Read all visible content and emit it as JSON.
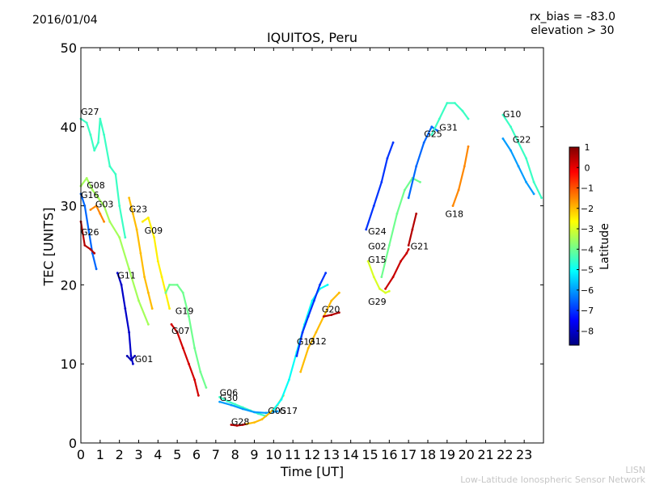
{
  "header": {
    "date": "2016/01/04",
    "rx_bias": "rx_bias = -83.0",
    "elevation": "elevation > 30"
  },
  "credit": {
    "line1": "LISN",
    "line2": "Low-Latitude Ionospheric Sensor Network"
  },
  "chart_data": {
    "type": "scatter",
    "title": "IQUITOS, Peru",
    "xlabel": "Time [UT]",
    "ylabel": "TEC [UNITS]",
    "xlim": [
      0,
      24
    ],
    "ylim": [
      0,
      50
    ],
    "x_ticks": [
      0,
      1,
      2,
      3,
      4,
      5,
      6,
      7,
      8,
      9,
      10,
      11,
      12,
      13,
      14,
      15,
      16,
      17,
      18,
      19,
      20,
      21,
      22,
      23
    ],
    "y_ticks": [
      0,
      10,
      20,
      30,
      40,
      50
    ],
    "colorbar": {
      "label": "Latitude",
      "range": [
        -8.7,
        1.0
      ],
      "ticks": [
        1,
        0,
        -1,
        -2,
        -3,
        -4,
        -5,
        -6,
        -7,
        -8
      ],
      "colormap": [
        "#00007f",
        "#0000ff",
        "#007fff",
        "#00ffff",
        "#7fff7f",
        "#ffff00",
        "#ff7f00",
        "#ff0000",
        "#7f0000"
      ]
    },
    "series": [
      {
        "name": "G27",
        "lat": -4.5,
        "points": [
          [
            0,
            41
          ],
          [
            0.3,
            40.5
          ],
          [
            0.5,
            39
          ],
          [
            0.7,
            37
          ],
          [
            0.9,
            38
          ],
          [
            1.0,
            41
          ],
          [
            1.2,
            39
          ],
          [
            1.5,
            35
          ],
          [
            1.8,
            34
          ],
          [
            2.0,
            30
          ],
          [
            2.3,
            26
          ]
        ]
      },
      {
        "name": "G08",
        "lat": -3.5,
        "points": [
          [
            0,
            32.5
          ],
          [
            0.3,
            33.5
          ],
          [
            0.6,
            32
          ],
          [
            0.9,
            31
          ],
          [
            1.2,
            30
          ],
          [
            1.5,
            28
          ],
          [
            2.0,
            26
          ],
          [
            2.5,
            22
          ],
          [
            3.0,
            18
          ],
          [
            3.5,
            15
          ]
        ]
      },
      {
        "name": "G16",
        "lat": -6.5,
        "points": [
          [
            0,
            31.5
          ],
          [
            0.2,
            30
          ],
          [
            0.4,
            27
          ],
          [
            0.6,
            24
          ],
          [
            0.8,
            22
          ]
        ]
      },
      {
        "name": "G03",
        "lat": -1.5,
        "points": [
          [
            0.5,
            29.5
          ],
          [
            0.8,
            30
          ],
          [
            1.0,
            29
          ],
          [
            1.2,
            28
          ]
        ]
      },
      {
        "name": "G26",
        "lat": 0.5,
        "points": [
          [
            0,
            28
          ],
          [
            0.2,
            25
          ],
          [
            0.5,
            24.5
          ],
          [
            0.7,
            24
          ]
        ]
      },
      {
        "name": "G11",
        "lat": -8.0,
        "points": [
          [
            1.9,
            21.5
          ],
          [
            2.1,
            20
          ],
          [
            2.3,
            17
          ],
          [
            2.5,
            14
          ],
          [
            2.6,
            11
          ],
          [
            2.7,
            10
          ]
        ]
      },
      {
        "name": "G01",
        "lat": -8.2,
        "points": [
          [
            2.4,
            11
          ],
          [
            2.6,
            10.5
          ],
          [
            2.8,
            11
          ]
        ]
      },
      {
        "name": "G23",
        "lat": -2.0,
        "points": [
          [
            2.5,
            31
          ],
          [
            2.7,
            29
          ],
          [
            2.9,
            27
          ],
          [
            3.1,
            24
          ],
          [
            3.3,
            21
          ],
          [
            3.5,
            19
          ],
          [
            3.7,
            17
          ]
        ]
      },
      {
        "name": "G09",
        "lat": -2.5,
        "points": [
          [
            3.2,
            28
          ],
          [
            3.5,
            28.5
          ],
          [
            3.8,
            26
          ],
          [
            4.0,
            23
          ],
          [
            4.2,
            21
          ],
          [
            4.4,
            19
          ],
          [
            4.6,
            17
          ]
        ]
      },
      {
        "name": "G19",
        "lat": -4.0,
        "points": [
          [
            4.4,
            19
          ],
          [
            4.6,
            20
          ],
          [
            5.0,
            20
          ],
          [
            5.3,
            19
          ],
          [
            5.6,
            16
          ],
          [
            5.9,
            12
          ],
          [
            6.2,
            9
          ],
          [
            6.5,
            7
          ]
        ]
      },
      {
        "name": "G07",
        "lat": 0.2,
        "points": [
          [
            4.7,
            15
          ],
          [
            5.0,
            14
          ],
          [
            5.3,
            12
          ],
          [
            5.6,
            10
          ],
          [
            5.9,
            8
          ],
          [
            6.1,
            6
          ]
        ]
      },
      {
        "name": "G06",
        "lat": -4.5,
        "points": [
          [
            7.2,
            5.8
          ],
          [
            7.6,
            5.3
          ],
          [
            8.0,
            4.9
          ],
          [
            8.4,
            4.5
          ],
          [
            8.8,
            4.1
          ],
          [
            9.2,
            3.7
          ],
          [
            9.6,
            3.4
          ]
        ]
      },
      {
        "name": "G30",
        "lat": -6.0,
        "points": [
          [
            7.2,
            5.2
          ],
          [
            7.8,
            4.8
          ],
          [
            8.4,
            4.3
          ],
          [
            9.0,
            3.9
          ],
          [
            9.6,
            3.8
          ],
          [
            10.2,
            4.0
          ]
        ]
      },
      {
        "name": "G28",
        "lat": 0.5,
        "points": [
          [
            7.8,
            2.3
          ],
          [
            8.1,
            2.2
          ],
          [
            8.4,
            2.3
          ],
          [
            8.6,
            2.4
          ]
        ]
      },
      {
        "name": "G05",
        "lat": -2.0,
        "points": [
          [
            8.6,
            2.4
          ],
          [
            9.0,
            2.6
          ],
          [
            9.4,
            3.0
          ],
          [
            9.8,
            3.8
          ],
          [
            10.2,
            4.8
          ],
          [
            10.5,
            6
          ]
        ]
      },
      {
        "name": "G17",
        "lat": -5.0,
        "points": [
          [
            10.0,
            4.2
          ],
          [
            10.4,
            5.5
          ],
          [
            10.8,
            8
          ],
          [
            11.2,
            11.5
          ],
          [
            11.6,
            15
          ],
          [
            12.0,
            18
          ],
          [
            12.4,
            19.5
          ],
          [
            12.8,
            20
          ]
        ]
      },
      {
        "name": "G13",
        "lat": -7.0,
        "points": [
          [
            11.2,
            11
          ],
          [
            11.5,
            14
          ],
          [
            11.8,
            16
          ],
          [
            12.1,
            18
          ],
          [
            12.4,
            20
          ],
          [
            12.7,
            21.5
          ]
        ]
      },
      {
        "name": "G12",
        "lat": -2.0,
        "points": [
          [
            11.4,
            9
          ],
          [
            11.8,
            12
          ],
          [
            12.2,
            14
          ],
          [
            12.6,
            16
          ],
          [
            13.0,
            18
          ],
          [
            13.4,
            19
          ]
        ]
      },
      {
        "name": "G20",
        "lat": 0.5,
        "points": [
          [
            12.6,
            16
          ],
          [
            13.0,
            16.2
          ],
          [
            13.4,
            16.5
          ]
        ]
      },
      {
        "name": "G24",
        "lat": -7.0,
        "points": [
          [
            14.8,
            27
          ],
          [
            15.2,
            30
          ],
          [
            15.6,
            33
          ],
          [
            15.9,
            36
          ],
          [
            16.2,
            38
          ]
        ]
      },
      {
        "name": "G02",
        "lat": -4.0,
        "points": [
          [
            15.6,
            21
          ],
          [
            16.0,
            25
          ],
          [
            16.4,
            29
          ],
          [
            16.8,
            32
          ],
          [
            17.2,
            33.5
          ],
          [
            17.6,
            33
          ]
        ]
      },
      {
        "name": "G15",
        "lat": -3.0,
        "points": [
          [
            14.9,
            23
          ],
          [
            15.2,
            21
          ],
          [
            15.5,
            19.5
          ],
          [
            15.8,
            19
          ],
          [
            16.0,
            19.2
          ]
        ]
      },
      {
        "name": "G29",
        "lat": 0.3,
        "points": [
          [
            15.8,
            19.5
          ],
          [
            16.2,
            21
          ],
          [
            16.6,
            23
          ],
          [
            16.9,
            24
          ],
          [
            17.0,
            24.5
          ]
        ]
      },
      {
        "name": "G21",
        "lat": 0.5,
        "points": [
          [
            17.0,
            25
          ],
          [
            17.2,
            27
          ],
          [
            17.4,
            29
          ]
        ]
      },
      {
        "name": "G25",
        "lat": -6.5,
        "points": [
          [
            17.0,
            31
          ],
          [
            17.4,
            35
          ],
          [
            17.8,
            38
          ],
          [
            18.2,
            40
          ],
          [
            18.5,
            39.5
          ]
        ]
      },
      {
        "name": "G31",
        "lat": -4.5,
        "points": [
          [
            18.2,
            39
          ],
          [
            18.6,
            41
          ],
          [
            19.0,
            43
          ],
          [
            19.4,
            43
          ],
          [
            19.8,
            42
          ],
          [
            20.1,
            41
          ]
        ]
      },
      {
        "name": "G18",
        "lat": -1.5,
        "points": [
          [
            19.3,
            30
          ],
          [
            19.6,
            32
          ],
          [
            19.9,
            35
          ],
          [
            20.1,
            37.5
          ]
        ]
      },
      {
        "name": "G10",
        "lat": -4.5,
        "points": [
          [
            21.9,
            41.5
          ],
          [
            22.3,
            40
          ],
          [
            22.7,
            38
          ],
          [
            23.1,
            36
          ],
          [
            23.5,
            33
          ],
          [
            23.9,
            31
          ]
        ]
      },
      {
        "name": "G22",
        "lat": -6.0,
        "points": [
          [
            21.9,
            38.5
          ],
          [
            22.3,
            37
          ],
          [
            22.7,
            35
          ],
          [
            23.1,
            33
          ],
          [
            23.5,
            31.5
          ]
        ]
      }
    ],
    "label_positions": [
      {
        "name": "G27",
        "x": 0.0,
        "y": 41.5
      },
      {
        "name": "G08",
        "x": 0.3,
        "y": 32.2
      },
      {
        "name": "G16",
        "x": 0.0,
        "y": 31.0
      },
      {
        "name": "G03",
        "x": 0.75,
        "y": 29.8
      },
      {
        "name": "G26",
        "x": 0.0,
        "y": 26.3
      },
      {
        "name": "G11",
        "x": 1.9,
        "y": 20.8
      },
      {
        "name": "G01",
        "x": 2.8,
        "y": 10.2
      },
      {
        "name": "G23",
        "x": 2.5,
        "y": 29.2
      },
      {
        "name": "G09",
        "x": 3.3,
        "y": 26.5
      },
      {
        "name": "G19",
        "x": 4.9,
        "y": 16.3
      },
      {
        "name": "G07",
        "x": 4.7,
        "y": 13.8
      },
      {
        "name": "G06",
        "x": 7.2,
        "y": 6.0
      },
      {
        "name": "G30",
        "x": 7.2,
        "y": 5.3
      },
      {
        "name": "G28",
        "x": 7.8,
        "y": 2.3
      },
      {
        "name": "G05",
        "x": 9.7,
        "y": 3.7
      },
      {
        "name": "G17",
        "x": 10.3,
        "y": 3.7
      },
      {
        "name": "G13",
        "x": 11.2,
        "y": 12.4
      },
      {
        "name": "G12",
        "x": 11.8,
        "y": 12.5
      },
      {
        "name": "G20",
        "x": 12.5,
        "y": 16.5
      },
      {
        "name": "G24",
        "x": 14.9,
        "y": 26.4
      },
      {
        "name": "G02",
        "x": 14.9,
        "y": 24.5
      },
      {
        "name": "G15",
        "x": 14.9,
        "y": 22.8
      },
      {
        "name": "G29",
        "x": 14.9,
        "y": 17.5
      },
      {
        "name": "G21",
        "x": 17.1,
        "y": 24.5
      },
      {
        "name": "G25",
        "x": 17.8,
        "y": 38.7
      },
      {
        "name": "G31",
        "x": 18.6,
        "y": 39.5
      },
      {
        "name": "G18",
        "x": 18.9,
        "y": 28.6
      },
      {
        "name": "G10",
        "x": 21.9,
        "y": 41.2
      },
      {
        "name": "G22",
        "x": 22.4,
        "y": 38.0
      }
    ]
  }
}
